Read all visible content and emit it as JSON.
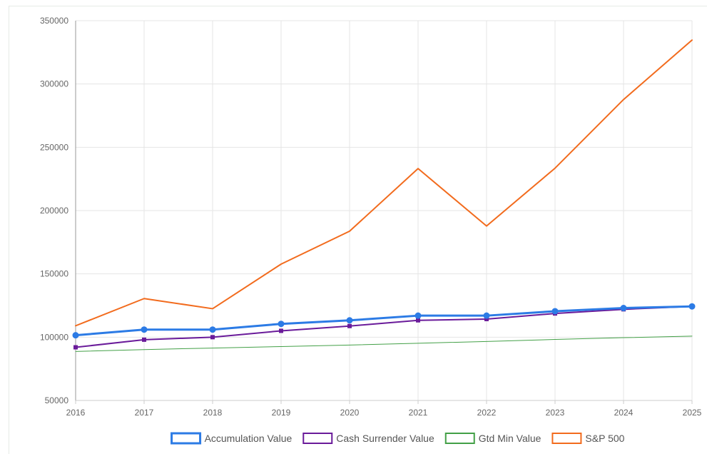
{
  "chart_data": {
    "type": "line",
    "x": [
      "2016",
      "2017",
      "2018",
      "2019",
      "2020",
      "2021",
      "2022",
      "2023",
      "2024",
      "2025"
    ],
    "ylim": [
      50000,
      350000
    ],
    "y_ticks": [
      50000,
      100000,
      150000,
      200000,
      250000,
      300000,
      350000
    ],
    "grid": true,
    "legend_position": "bottom",
    "series": [
      {
        "name": "Accumulation Value",
        "color": "#2c7be5",
        "marker": "circle",
        "values": [
          101500,
          106000,
          106000,
          110500,
          113300,
          117000,
          117000,
          120500,
          123000,
          124300
        ]
      },
      {
        "name": "Cash Surrender Value",
        "color": "#6a1b9a",
        "marker": "square",
        "values": [
          92000,
          98000,
          100000,
          105000,
          108800,
          113300,
          114300,
          118700,
          122000,
          124300
        ]
      },
      {
        "name": "Gtd Min Value",
        "color": "#43a047",
        "marker": "none",
        "values": [
          88700,
          90200,
          91400,
          92600,
          93800,
          95200,
          96600,
          98200,
          99600,
          100800
        ]
      },
      {
        "name": "S&P 500",
        "color": "#f26b1d",
        "marker": "none",
        "values": [
          109000,
          130500,
          122500,
          157700,
          183700,
          233200,
          187800,
          233500,
          287700,
          334700
        ]
      }
    ]
  }
}
